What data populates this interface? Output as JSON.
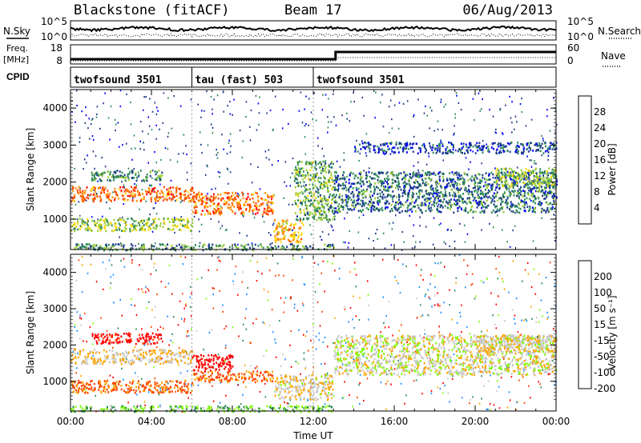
{
  "title": {
    "station": "Blackstone (fitACF)",
    "beam": "Beam 17",
    "date": "06/Aug/2013"
  },
  "panels": {
    "nsky": {
      "left_label": "N.Sky",
      "right_label": "N.Search",
      "ticks_left": [
        "10^5",
        "10^0"
      ],
      "ticks_right": [
        "10^5",
        "10^0"
      ]
    },
    "freq": {
      "left_label": "Freq.",
      "left_unit": "[MHz]",
      "right_label": "Nave",
      "ticks_left": [
        "18",
        "8"
      ],
      "ticks_right": [
        "60",
        "0"
      ]
    },
    "cpid": {
      "label": "CPID",
      "segments": [
        {
          "name": "twofsound 3501",
          "start_hour": 0,
          "end_hour": 6
        },
        {
          "name": "tau (fast) 503",
          "start_hour": 6,
          "end_hour": 12
        },
        {
          "name": "twofsound 3501",
          "start_hour": 12,
          "end_hour": 24
        }
      ]
    }
  },
  "chart_data": [
    {
      "type": "heatmap",
      "name": "power",
      "ylabel": "Slant Range [km]",
      "colorbar_label": "Power [dB]",
      "colorbar_ticks": [
        "28",
        "24",
        "20",
        "16",
        "12",
        "8",
        "4"
      ],
      "colorbar_colors": [
        "#ff0000",
        "#ff4500",
        "#ff8c00",
        "#ffd700",
        "#9acd32",
        "#2e8b57",
        "#1c3a8a",
        "#0000ff"
      ],
      "ylim": [
        180,
        4500
      ],
      "yticks": [
        "4000",
        "3000",
        "2000",
        "1000"
      ],
      "xlim_hours": [
        0,
        24
      ],
      "bands": [
        {
          "t0": 0,
          "t1": 6,
          "r0": 1500,
          "r1": 1900,
          "value_db": 24
        },
        {
          "t0": 0,
          "t1": 6,
          "r0": 700,
          "r1": 1050,
          "value_db": 14
        },
        {
          "t0": 1,
          "t1": 4.5,
          "r0": 2050,
          "r1": 2350,
          "value_db": 10
        },
        {
          "t0": 6,
          "t1": 10,
          "r0": 1150,
          "r1": 1750,
          "value_db": 24
        },
        {
          "t0": 10,
          "t1": 11.5,
          "r0": 400,
          "r1": 1000,
          "value_db": 20
        },
        {
          "t0": 11,
          "t1": 13,
          "r0": 1000,
          "r1": 2600,
          "value_db": 12
        },
        {
          "t0": 13,
          "t1": 24,
          "r0": 1200,
          "r1": 2300,
          "value_db": 8
        },
        {
          "t0": 14,
          "t1": 24,
          "r0": 2800,
          "r1": 3100,
          "value_db": 6
        },
        {
          "t0": 21,
          "t1": 24,
          "r0": 1900,
          "r1": 2400,
          "value_db": 14
        },
        {
          "t0": 0,
          "t1": 13,
          "r0": 180,
          "r1": 350,
          "value_db": 10
        }
      ]
    },
    {
      "type": "heatmap",
      "name": "velocity",
      "ylabel": "Slant Range [km]",
      "colorbar_label": "Velocity [m s⁻¹]",
      "colorbar_ticks": [
        "200",
        "100",
        "50",
        "15",
        "-15",
        "-50",
        "-100",
        "-200"
      ],
      "colorbar_colors": [
        "#0000cd",
        "#1e90ff",
        "#2e8b57",
        "#7cfc00",
        "#c8c8c8",
        "#ffa500",
        "#ff4500",
        "#ff0000"
      ],
      "ylim": [
        180,
        4500
      ],
      "yticks": [
        "4000",
        "3000",
        "2000",
        "1000"
      ],
      "xlim_hours": [
        0,
        24
      ],
      "xticks": [
        "00:00",
        "04:00",
        "08:00",
        "12:00",
        "16:00",
        "20:00",
        "00:00"
      ],
      "xlabel": "Time UT",
      "bands": [
        {
          "t0": 0,
          "t1": 6,
          "r0": 1500,
          "r1": 1900,
          "value": -15
        },
        {
          "t0": 0,
          "t1": 6,
          "r0": 700,
          "r1": 1050,
          "value": -60
        },
        {
          "t0": 1,
          "t1": 4.5,
          "r0": 2050,
          "r1": 2350,
          "value": -120
        },
        {
          "t0": 6,
          "t1": 8,
          "r0": 1300,
          "r1": 1750,
          "value": -180
        },
        {
          "t0": 6,
          "t1": 10,
          "r0": 1000,
          "r1": 1300,
          "value": -60
        },
        {
          "t0": 10,
          "t1": 13,
          "r0": 500,
          "r1": 1200,
          "value": -10
        },
        {
          "t0": 13,
          "t1": 24,
          "r0": 1200,
          "r1": 2300,
          "value": 0
        },
        {
          "t0": 20,
          "t1": 24,
          "r0": 1800,
          "r1": 2300,
          "value": -10
        },
        {
          "t0": 0,
          "t1": 13,
          "r0": 180,
          "r1": 350,
          "value": 40
        }
      ]
    }
  ]
}
